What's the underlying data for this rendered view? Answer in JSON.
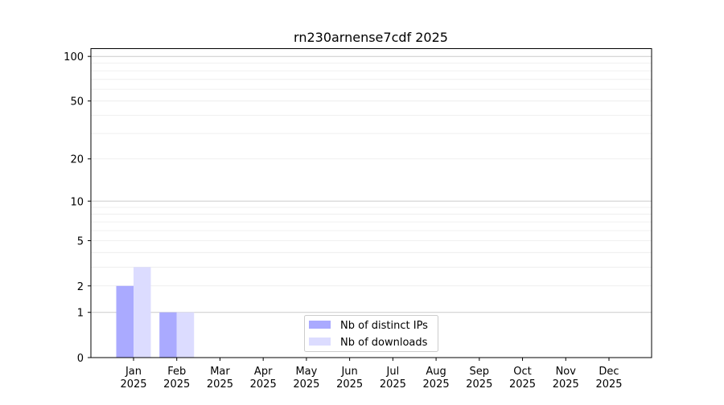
{
  "chart_data": {
    "type": "bar",
    "title": "rn230arnense7cdf 2025",
    "xlabel": "",
    "ylabel": "",
    "y_scale": "log10(1+y)",
    "ylim": [
      0,
      114
    ],
    "yticks": [
      0,
      1,
      2,
      5,
      10,
      20,
      50,
      100
    ],
    "ytick_labels": [
      "0",
      "1",
      "2",
      "5",
      "10",
      "20",
      "50",
      "100"
    ],
    "grid": true,
    "legend_position": "lower-center",
    "categories": [
      {
        "month": "Jan",
        "year": "2025"
      },
      {
        "month": "Feb",
        "year": "2025"
      },
      {
        "month": "Mar",
        "year": "2025"
      },
      {
        "month": "Apr",
        "year": "2025"
      },
      {
        "month": "May",
        "year": "2025"
      },
      {
        "month": "Jun",
        "year": "2025"
      },
      {
        "month": "Jul",
        "year": "2025"
      },
      {
        "month": "Aug",
        "year": "2025"
      },
      {
        "month": "Sep",
        "year": "2025"
      },
      {
        "month": "Oct",
        "year": "2025"
      },
      {
        "month": "Nov",
        "year": "2025"
      },
      {
        "month": "Dec",
        "year": "2025"
      }
    ],
    "series": [
      {
        "name": "Nb of distinct IPs",
        "color": "#aaaaff",
        "values": [
          2,
          1,
          0,
          0,
          0,
          0,
          0,
          0,
          0,
          0,
          0,
          0
        ]
      },
      {
        "name": "Nb of downloads",
        "color": "#dcdcff",
        "values": [
          3,
          1,
          0,
          0,
          0,
          0,
          0,
          0,
          0,
          0,
          0,
          0
        ]
      }
    ]
  }
}
